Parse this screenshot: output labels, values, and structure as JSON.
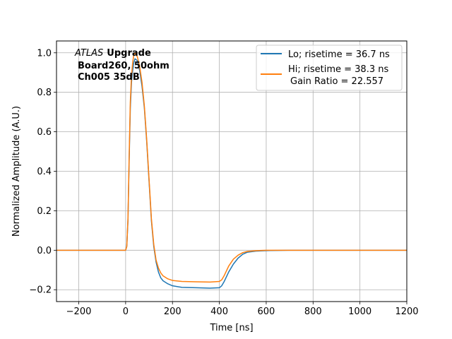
{
  "chart_data": {
    "type": "line",
    "xlabel": "Time [ns]",
    "ylabel": "Normalized Amplitude (A.U.)",
    "xlim": [
      -295,
      1200
    ],
    "ylim": [
      -0.26,
      1.06
    ],
    "xticks": [
      -200,
      0,
      200,
      400,
      600,
      800,
      1000,
      1200
    ],
    "yticks": [
      -0.2,
      0.0,
      0.2,
      0.4,
      0.6,
      0.8,
      1.0
    ],
    "xtick_labels": [
      "−200",
      "0",
      "200",
      "400",
      "600",
      "800",
      "1000",
      "1200"
    ],
    "ytick_labels": [
      "−0.2",
      "0.0",
      "0.2",
      "0.4",
      "0.6",
      "0.8",
      "1.0"
    ],
    "grid": true,
    "legend_position": "top-right",
    "annotation": {
      "line1_italic": "ATLAS",
      "line1_bold": "Upgrade",
      "line2": "Board260, 50ohm",
      "line3": "Ch005 35dB"
    },
    "series": [
      {
        "name": "Lo; risetime = 36.7 ns",
        "color": "#1f77b4",
        "points": [
          [
            -295,
            0.0
          ],
          [
            -100,
            0.0
          ],
          [
            0,
            0.0
          ],
          [
            5,
            0.02
          ],
          [
            10,
            0.15
          ],
          [
            15,
            0.45
          ],
          [
            20,
            0.72
          ],
          [
            25,
            0.85
          ],
          [
            30,
            0.91
          ],
          [
            35,
            0.95
          ],
          [
            40,
            0.97
          ],
          [
            50,
            0.96
          ],
          [
            60,
            0.91
          ],
          [
            70,
            0.83
          ],
          [
            80,
            0.72
          ],
          [
            90,
            0.55
          ],
          [
            100,
            0.35
          ],
          [
            110,
            0.15
          ],
          [
            120,
            0.02
          ],
          [
            130,
            -0.06
          ],
          [
            140,
            -0.11
          ],
          [
            150,
            -0.14
          ],
          [
            160,
            -0.155
          ],
          [
            180,
            -0.17
          ],
          [
            200,
            -0.18
          ],
          [
            240,
            -0.188
          ],
          [
            300,
            -0.19
          ],
          [
            360,
            -0.192
          ],
          [
            400,
            -0.19
          ],
          [
            410,
            -0.18
          ],
          [
            420,
            -0.16
          ],
          [
            440,
            -0.11
          ],
          [
            460,
            -0.07
          ],
          [
            480,
            -0.04
          ],
          [
            500,
            -0.02
          ],
          [
            520,
            -0.01
          ],
          [
            560,
            -0.004
          ],
          [
            600,
            -0.002
          ],
          [
            700,
            0.0
          ],
          [
            800,
            0.0
          ],
          [
            900,
            0.0
          ],
          [
            1000,
            0.0
          ],
          [
            1100,
            0.0
          ],
          [
            1200,
            0.0
          ]
        ]
      },
      {
        "name": "Hi; risetime = 38.3 ns",
        "name_line2": "Gain Ratio = 22.557",
        "color": "#ff7f0e",
        "points": [
          [
            -295,
            0.0
          ],
          [
            -100,
            0.0
          ],
          [
            0,
            0.0
          ],
          [
            5,
            0.02
          ],
          [
            10,
            0.16
          ],
          [
            15,
            0.47
          ],
          [
            20,
            0.75
          ],
          [
            25,
            0.88
          ],
          [
            30,
            0.95
          ],
          [
            35,
            0.99
          ],
          [
            40,
            1.0
          ],
          [
            50,
            0.98
          ],
          [
            60,
            0.93
          ],
          [
            70,
            0.85
          ],
          [
            80,
            0.73
          ],
          [
            90,
            0.56
          ],
          [
            100,
            0.36
          ],
          [
            110,
            0.16
          ],
          [
            120,
            0.03
          ],
          [
            130,
            -0.05
          ],
          [
            140,
            -0.09
          ],
          [
            150,
            -0.115
          ],
          [
            160,
            -0.13
          ],
          [
            180,
            -0.145
          ],
          [
            200,
            -0.153
          ],
          [
            240,
            -0.158
          ],
          [
            300,
            -0.16
          ],
          [
            360,
            -0.161
          ],
          [
            400,
            -0.158
          ],
          [
            410,
            -0.15
          ],
          [
            420,
            -0.13
          ],
          [
            440,
            -0.08
          ],
          [
            460,
            -0.045
          ],
          [
            480,
            -0.025
          ],
          [
            500,
            -0.012
          ],
          [
            520,
            -0.006
          ],
          [
            560,
            -0.002
          ],
          [
            600,
            0.0
          ],
          [
            700,
            0.0
          ],
          [
            800,
            0.0
          ],
          [
            900,
            0.0
          ],
          [
            1000,
            0.0
          ],
          [
            1100,
            0.0
          ],
          [
            1200,
            0.0
          ]
        ]
      }
    ]
  }
}
